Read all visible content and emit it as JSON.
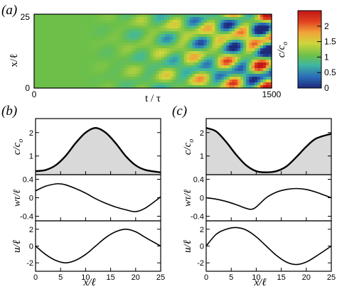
{
  "panel_a": {
    "tag": "(a)",
    "ylabel": "x/ℓ",
    "xlabel": "t / τ",
    "xticks": [
      "0",
      "1500"
    ],
    "yticks": [
      "25",
      "0"
    ],
    "colorbar": {
      "label": "c/c",
      "label_sub": "o",
      "ticks": [
        "2",
        "1.5",
        "1",
        "0.5",
        "0"
      ],
      "colors": [
        "#1e2a7a",
        "#2a6ab8",
        "#3fb8a0",
        "#6cc04a",
        "#cfd63a",
        "#f2a23a",
        "#e0401f",
        "#c01818"
      ]
    }
  },
  "panel_b": {
    "tag": "(b)",
    "xlabel": "x/ℓ",
    "xticks": [
      "0",
      "5",
      "10",
      "15",
      "20",
      "25"
    ],
    "c_label": "c/c",
    "c_label_sub": "o",
    "c_ticks": [
      "2",
      "1"
    ],
    "w_label": "wτ/ℓ",
    "w_ticks": [
      "0.4",
      "0",
      "-0.4"
    ],
    "u_label": "u/ℓ",
    "u_ticks": [
      "2",
      "0",
      "-2"
    ]
  },
  "panel_c": {
    "tag": "(c)",
    "xlabel": "x/ℓ",
    "xticks": [
      "0",
      "5",
      "10",
      "15",
      "20",
      "25"
    ],
    "c_label": "c/c",
    "c_label_sub": "o",
    "c_ticks": [
      "2",
      "1"
    ],
    "w_label": "wτ/ℓ",
    "w_ticks": [
      "0.4",
      "0",
      "-0.4"
    ],
    "u_label": "u/ℓ",
    "u_ticks": [
      "2",
      "0",
      "-2"
    ]
  },
  "chart_data": [
    {
      "type": "heatmap",
      "title": "(a)",
      "xlabel": "t / τ",
      "ylabel": "x/ℓ",
      "xlim": [
        0,
        1500
      ],
      "ylim": [
        0,
        25
      ],
      "colorbar_label": "c/c_o",
      "colorbar_range": [
        0,
        2.5
      ]
    },
    {
      "type": "line",
      "title": "(b)",
      "xlabel": "x/ℓ",
      "xlim": [
        0,
        25
      ],
      "series": [
        {
          "name": "c/c_o",
          "x": [
            0,
            2,
            4,
            6,
            8,
            10,
            12,
            14,
            16,
            18,
            20,
            22,
            25
          ],
          "values": [
            0.35,
            0.4,
            0.6,
            1.0,
            1.55,
            2.0,
            2.2,
            2.0,
            1.55,
            1.0,
            0.6,
            0.4,
            0.3
          ]
        },
        {
          "name": "wτ/ℓ",
          "x": [
            0,
            2,
            4,
            5,
            6,
            8,
            10,
            12,
            14,
            16,
            18,
            20,
            22,
            25
          ],
          "values": [
            0.15,
            0.25,
            0.3,
            0.3,
            0.28,
            0.2,
            0.1,
            -0.02,
            -0.12,
            -0.2,
            -0.26,
            -0.3,
            -0.22,
            0.02
          ]
        },
        {
          "name": "u/ℓ",
          "x": [
            0,
            2,
            4,
            6,
            8,
            10,
            12,
            14,
            16,
            18,
            20,
            22,
            25
          ],
          "values": [
            0,
            -1.0,
            -1.7,
            -2.0,
            -1.7,
            -1.0,
            0,
            1.0,
            1.7,
            2.0,
            1.7,
            1.0,
            0
          ]
        }
      ]
    },
    {
      "type": "line",
      "title": "(c)",
      "xlabel": "x/ℓ",
      "xlim": [
        0,
        25
      ],
      "series": [
        {
          "name": "c/c_o",
          "x": [
            0,
            2,
            4,
            6,
            8,
            10,
            12,
            14,
            16,
            18,
            20,
            22,
            25
          ],
          "values": [
            2.2,
            2.05,
            1.6,
            1.05,
            0.6,
            0.35,
            0.3,
            0.35,
            0.55,
            0.95,
            1.4,
            1.75,
            1.95
          ]
        },
        {
          "name": "wτ/ℓ",
          "x": [
            0,
            2,
            4,
            6,
            8,
            9,
            10,
            12,
            14,
            16,
            18,
            20,
            22,
            25
          ],
          "values": [
            0.0,
            -0.03,
            -0.08,
            -0.15,
            -0.23,
            -0.25,
            -0.2,
            0.0,
            0.12,
            0.18,
            0.2,
            0.18,
            0.12,
            0.0
          ]
        },
        {
          "name": "u/ℓ",
          "x": [
            0,
            2,
            4,
            6,
            8,
            10,
            12,
            14,
            16,
            18,
            20,
            22,
            25
          ],
          "values": [
            0,
            1.4,
            2.0,
            2.2,
            1.9,
            1.1,
            0,
            -1.1,
            -1.9,
            -2.2,
            -1.9,
            -1.2,
            0
          ]
        }
      ]
    }
  ]
}
